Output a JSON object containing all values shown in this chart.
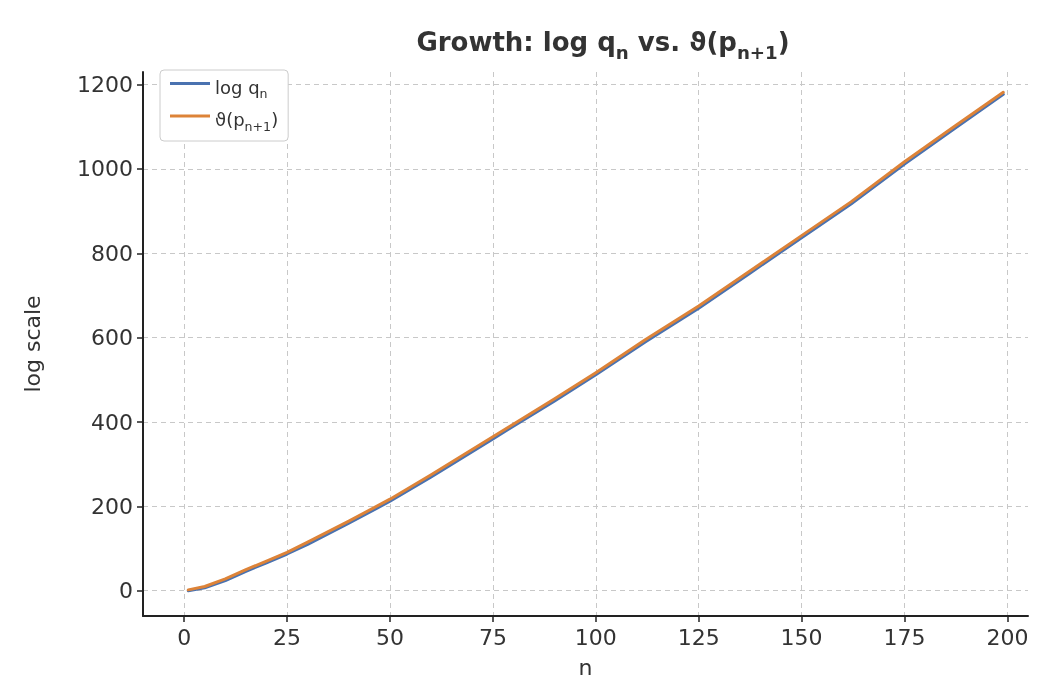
{
  "chart_data": {
    "type": "line",
    "title": "Growth: log q$_{n}$ vs. ϑ(p$_{n+1}$)",
    "xlabel": "n",
    "ylabel": "log scale",
    "x": [
      1,
      5,
      10,
      15,
      20,
      25,
      30,
      40,
      50,
      60,
      75,
      90,
      100,
      112,
      125,
      137,
      150,
      162,
      175,
      187,
      199
    ],
    "series": [
      {
        "name": "log q$_{n}$",
        "color": "#4a72b0",
        "values": [
          0,
          7,
          24,
          46,
          66,
          87,
          110,
          160,
          212,
          270,
          360,
          450,
          512,
          590,
          670,
          750,
          837,
          917,
          1012,
          1095,
          1177
        ]
      },
      {
        "name": "ϑ(p$_{n+1}$)",
        "color": "#dd8338",
        "values": [
          2,
          10,
          28,
          50,
          70,
          91,
          115,
          165,
          217,
          275,
          365,
          455,
          517,
          595,
          675,
          755,
          842,
          922,
          1017,
          1100,
          1182
        ]
      }
    ],
    "xlim": [
      -10,
      205
    ],
    "xticks": [
      0,
      25,
      50,
      75,
      100,
      125,
      150,
      175,
      200
    ],
    "ylim": [
      -60,
      1230
    ],
    "yticks": [
      0,
      200,
      400,
      600,
      800,
      1000,
      1200
    ],
    "grid": true,
    "legend": "top left",
    "line_style": "solid",
    "marker": "none"
  }
}
